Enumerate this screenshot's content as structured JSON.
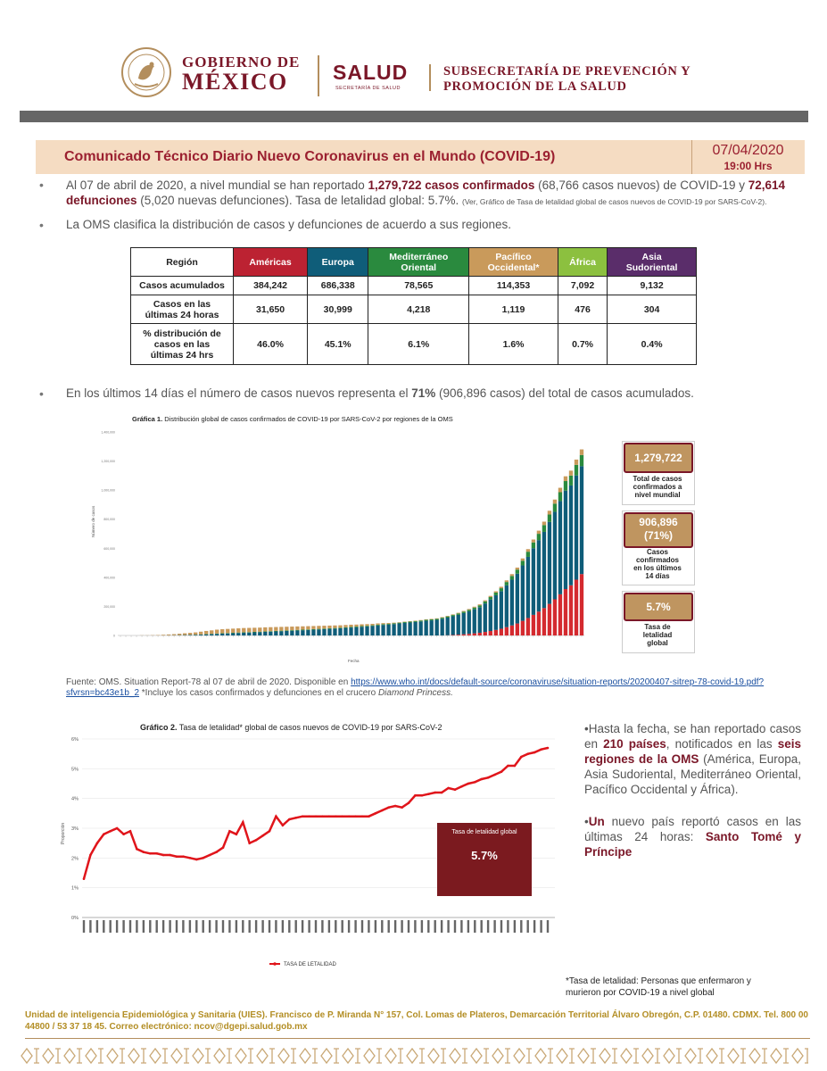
{
  "header": {
    "gob_line1": "GOBIERNO DE",
    "gob_line2": "MÉXICO",
    "salud": "SALUD",
    "salud_sub": "SECRETARÍA DE SALUD",
    "subsec_line1": "SUBSECRETARÍA DE PREVENCIÓN Y",
    "subsec_line2": "PROMOCIÓN DE LA SALUD",
    "seal_text": "ESTADOS UNIDOS MEXICANOS"
  },
  "title": {
    "text": "Comunicado Técnico Diario Nuevo Coronavirus en el Mundo (COVID-19)",
    "date": "07/04/2020",
    "time": "19:00 Hrs"
  },
  "bullets": {
    "b1_a": "Al 07 de abril de 2020, a nivel mundial se han reportado ",
    "b1_b": "1,279,722 casos confirmados",
    "b1_c": " (68,766 casos nuevos) de COVID-19 y ",
    "b1_d": "72,614 defunciones",
    "b1_e": " (5,020 nuevas defunciones). Tasa de letalidad global: 5.7%. ",
    "b1_small": "(Ver, Gráfico de Tasa de letalidad global de casos nuevos de COVID-19 por SARS-CoV-2).",
    "b2": "La OMS clasifica la distribución de casos y defunciones de acuerdo a sus regiones.",
    "b3_a": "En los últimos 14 días el número de casos nuevos representa el ",
    "b3_b": "71%",
    "b3_c": " (906,896 casos) del total de casos acumulados.",
    "bullet_char": "•"
  },
  "table": {
    "header_label": "Región",
    "regions": [
      {
        "name1": "Américas",
        "name2": ""
      },
      {
        "name1": "Europa",
        "name2": ""
      },
      {
        "name1": "Mediterráneo",
        "name2": "Oriental"
      },
      {
        "name1": "Pacífico",
        "name2": "Occidental*"
      },
      {
        "name1": "África",
        "name2": ""
      },
      {
        "name1": "Asia",
        "name2": "Sudoriental"
      }
    ],
    "rows": [
      {
        "label1": "Casos acumulados",
        "label2": "",
        "label3": "",
        "values": [
          "384,242",
          "686,338",
          "78,565",
          "114,353",
          "7,092",
          "9,132"
        ]
      },
      {
        "label1": "Casos en las",
        "label2": "últimas 24 horas",
        "label3": "",
        "values": [
          "31,650",
          "30,999",
          "4,218",
          "1,119",
          "476",
          "304"
        ]
      },
      {
        "label1": "% distribución de",
        "label2": "casos en las",
        "label3": "últimas 24 hrs",
        "values": [
          "46.0%",
          "45.1%",
          "6.1%",
          "1.6%",
          "0.7%",
          "0.4%"
        ]
      }
    ]
  },
  "chart1": {
    "title_bold": "Gráfica 1.",
    "title_rest": " Distribución global de casos confirmados de COVID-19  por SARS-CoV-2 por regiones de la OMS",
    "ylabel": "Número de casos",
    "xlabel": "Fecha",
    "box1_value": "1,279,722",
    "box1_l1": "Total de casos",
    "box1_l2": "confirmados a",
    "box1_l3": "nivel mundial",
    "box2_value": "906,896",
    "box2_pct": "(71%)",
    "box2_l1": "Casos",
    "box2_l2": "confirmados",
    "box2_l3": "en los últimos",
    "box2_l4": "14 días",
    "box3_value": "5.7%",
    "box3_l1": "Tasa de",
    "box3_l2": "letalidad",
    "box3_l3": "global"
  },
  "source": {
    "text1": "Fuente: OMS. Situation Report-78 al 07 de abril de 2020.  Disponible en ",
    "link": "https://www.who.int/docs/default-source/coronaviruse/situation-reports/20200407-sitrep-78-covid-19.pdf?sfvrsn=bc43e1b_2",
    "text2": " *Incluye los casos confirmados y defunciones en el crucero ",
    "ship": "Diamond Princess."
  },
  "chart2": {
    "title_bold": "Gráfico 2.",
    "title_rest": " Tasa de letalidad* global de casos nuevos de COVID-19 por SARS-CoV-2",
    "ylabel": "Proporción",
    "legend": "TASA DE LETALIDAD",
    "box_title": "Tasa de letalidad global",
    "box_value": "5.7%",
    "series_color": "#e0151b"
  },
  "chart_data": [
    {
      "type": "bar",
      "stacked": true,
      "series": [
        {
          "name": "Américas",
          "color": "#d42a2f"
        },
        {
          "name": "Europa",
          "color": "#0f5d79"
        },
        {
          "name": "Mediterráneo Oriental",
          "color": "#2a8a3e"
        },
        {
          "name": "Pacífico Occidental",
          "color": "#c99a5b"
        }
      ],
      "totals": [
        0,
        0,
        0,
        0,
        1,
        1,
        2,
        3,
        5,
        7,
        9,
        12,
        15,
        18,
        21,
        26,
        31,
        35,
        40,
        43,
        45,
        47,
        49,
        51,
        52,
        53,
        54,
        56,
        57,
        58,
        59,
        60,
        61,
        62,
        63,
        64,
        65,
        66,
        67,
        68,
        69,
        70,
        72,
        74,
        75,
        77,
        78,
        80,
        83,
        85,
        86,
        88,
        91,
        95,
        98,
        102,
        106,
        111,
        114,
        118,
        126,
        135,
        145,
        156,
        169,
        182,
        198,
        214,
        242,
        272,
        304,
        335,
        379,
        422,
        467,
        530,
        594,
        660,
        721,
        783,
        858,
        935,
        1016,
        1095,
        1134,
        1210,
        1280
      ],
      "ylim": [
        0,
        1400000
      ],
      "ytick_values": [
        0,
        200000,
        400000,
        600000,
        800000,
        1000000,
        1200000,
        1400000
      ]
    },
    {
      "type": "line",
      "ylim": [
        0,
        6
      ],
      "yticks": [
        "0%",
        "1%",
        "2%",
        "3%",
        "4%",
        "5%",
        "6%"
      ],
      "values": [
        1.3,
        2.1,
        2.5,
        2.8,
        2.9,
        3.0,
        2.8,
        2.9,
        2.3,
        2.2,
        2.15,
        2.15,
        2.1,
        2.1,
        2.05,
        2.05,
        2.0,
        1.95,
        2.0,
        2.1,
        2.2,
        2.35,
        2.9,
        2.8,
        3.2,
        2.5,
        2.6,
        2.75,
        2.9,
        3.4,
        3.1,
        3.3,
        3.35,
        3.4,
        3.4,
        3.4,
        3.4,
        3.4,
        3.4,
        3.4,
        3.4,
        3.4,
        3.4,
        3.4,
        3.5,
        3.6,
        3.7,
        3.75,
        3.7,
        3.85,
        4.1,
        4.1,
        4.15,
        4.2,
        4.2,
        4.35,
        4.3,
        4.4,
        4.5,
        4.55,
        4.65,
        4.7,
        4.8,
        4.9,
        5.1,
        5.1,
        5.4,
        5.5,
        5.55,
        5.65,
        5.7
      ]
    }
  ],
  "right_text": {
    "p1_a": "Hasta la fecha, se han reportado casos en ",
    "p1_b": "210 países",
    "p1_c": ", notificados en las ",
    "p1_d": "seis regiones de la OMS",
    "p1_e": " (América, Europa, Asia Sudoriental, Mediterráneo Oriental, Pacífico Occidental y África).",
    "p2_a": "Un",
    "p2_b": " nuevo país reportó casos en las últimas 24 horas: ",
    "p2_c": "Santo Tomé y Príncipe"
  },
  "note": "*Tasa de letalidad: Personas que enfermaron y murieron por COVID-19 a nivel global",
  "footer": "Unidad de inteligencia Epidemiológica y Sanitaria (UIES). Francisco de P. Miranda N° 157, Col. Lomas de Plateros, Demarcación Territorial Álvaro Obregón, C.P. 01480. CDMX. Tel. 800 00 44800 / 53 37 18 45. Correo electrónico: ncov@dgepi.salud.gob.mx"
}
